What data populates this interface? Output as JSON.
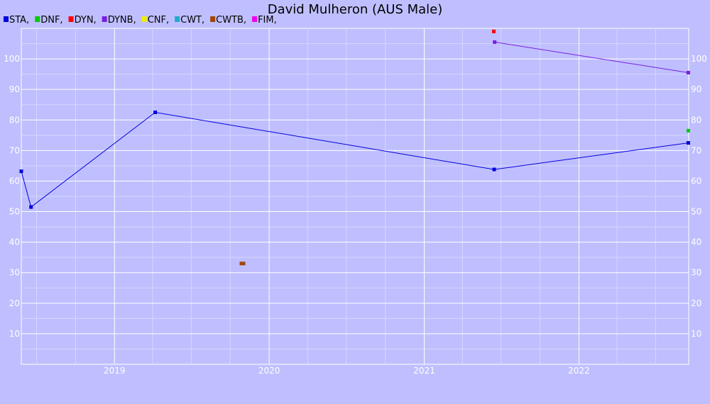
{
  "chart_data": {
    "type": "line",
    "title": "David Mulheron (AUS Male)",
    "xlabel": "",
    "ylabel": "",
    "x_ticks": [
      "2019",
      "2020",
      "2021",
      "2022"
    ],
    "y_ticks": [
      10,
      20,
      30,
      40,
      50,
      60,
      70,
      80,
      90,
      100
    ],
    "xlim": [
      "2018-05-26",
      "2022-09-17"
    ],
    "ylim": [
      0,
      110
    ],
    "grid": true,
    "legend_position": "top-left",
    "series": [
      {
        "name": "STA",
        "color": "#0000dd",
        "points": [
          {
            "x": "2018-05-26",
            "y": 63.2
          },
          {
            "x": "2018-06-18",
            "y": 51.5
          },
          {
            "x": "2019-04-07",
            "y": 82.5
          },
          {
            "x": "2021-06-15",
            "y": 63.8
          },
          {
            "x": "2022-09-16",
            "y": 72.5
          }
        ]
      },
      {
        "name": "DNF",
        "color": "#00cc00",
        "points": [
          {
            "x": "2022-09-16",
            "y": 76.5
          }
        ]
      },
      {
        "name": "DYN",
        "color": "#ff0000",
        "points": [
          {
            "x": "2021-06-14",
            "y": 109
          }
        ]
      },
      {
        "name": "DYNB",
        "color": "#7a1fe0",
        "points": [
          {
            "x": "2021-06-16",
            "y": 105.5
          },
          {
            "x": "2022-09-16",
            "y": 95.5
          }
        ]
      },
      {
        "name": "CNF",
        "color": "#eeee00",
        "points": []
      },
      {
        "name": "CWT",
        "color": "#22aacc",
        "points": []
      },
      {
        "name": "CWTB",
        "color": "#a04400",
        "points": [
          {
            "x": "2019-10-30",
            "y": 33
          }
        ]
      },
      {
        "name": "FIM",
        "color": "#ee00ee",
        "points": []
      }
    ]
  }
}
